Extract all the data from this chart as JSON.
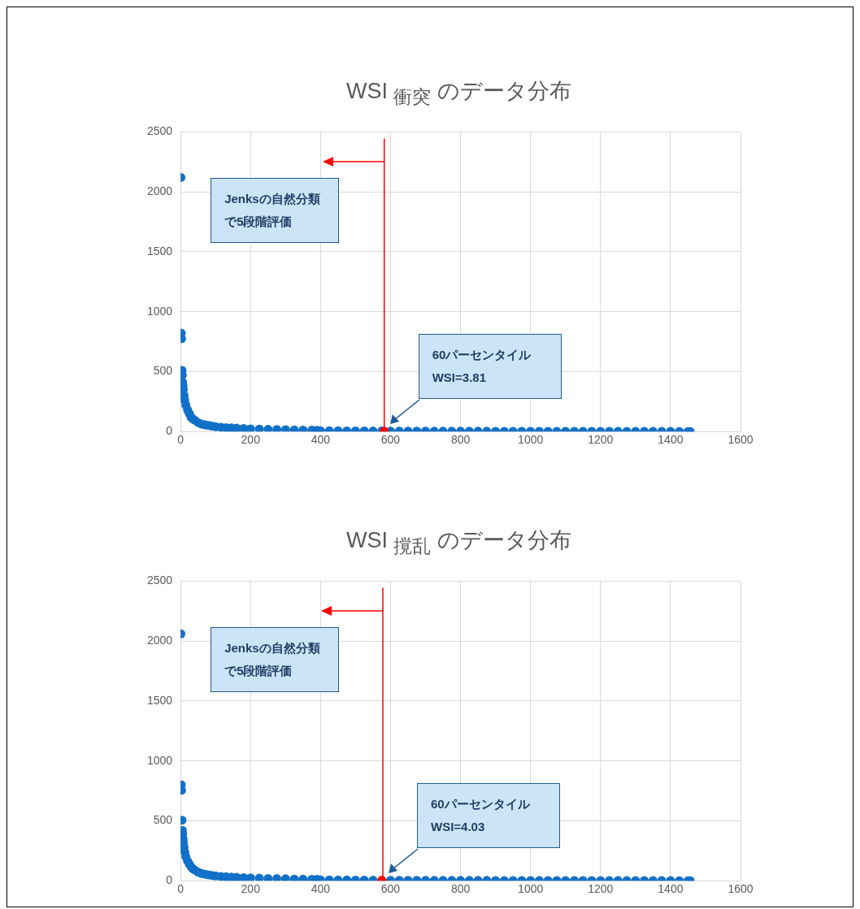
{
  "chart_data": [
    {
      "type": "scatter",
      "title": "WSI $_{衝突}$ のデータ分布",
      "xlim": [
        0,
        1600
      ],
      "xticks": [
        0,
        200,
        400,
        600,
        800,
        1000,
        1200,
        1400,
        1600
      ],
      "ylim": [
        0,
        2500
      ],
      "yticks": [
        0,
        500,
        1000,
        1500,
        2000,
        2500
      ],
      "grid": true,
      "legend": false,
      "marker": "circle",
      "series": [
        {
          "color": "#1170c8",
          "x": [
            1,
            2,
            3,
            4,
            5,
            6,
            7,
            8,
            10,
            12,
            15,
            20,
            25,
            30,
            35,
            40,
            50,
            60,
            70,
            80,
            90,
            100,
            115,
            130,
            145,
            160,
            180,
            200,
            225,
            250,
            275,
            300,
            325,
            350,
            375,
            390,
            400,
            425,
            450,
            475,
            500,
            525,
            550,
            575,
            600,
            625,
            650,
            675,
            700,
            725,
            750,
            775,
            800,
            825,
            850,
            875,
            900,
            925,
            950,
            975,
            1000,
            1025,
            1050,
            1075,
            1100,
            1125,
            1150,
            1175,
            1200,
            1225,
            1250,
            1275,
            1300,
            1325,
            1350,
            1375,
            1400,
            1425,
            1450,
            1456
          ],
          "values": [
            2120,
            820,
            775,
            510,
            470,
            410,
            380,
            350,
            300,
            260,
            220,
            180,
            150,
            120,
            105,
            95,
            75,
            62,
            55,
            50,
            45,
            40,
            36,
            32,
            30,
            28,
            25,
            22,
            20,
            18,
            17,
            15,
            13,
            12,
            11,
            10,
            6,
            5.8,
            5.6,
            5.4,
            5.1,
            4.8,
            4.4,
            4.0,
            3.6,
            3.4,
            3.2,
            3.1,
            3.0,
            2.9,
            2.8,
            2.7,
            2.6,
            2.5,
            2.4,
            2.3,
            2.2,
            2.1,
            2.0,
            1.9,
            1.8,
            1.7,
            1.6,
            1.6,
            1.5,
            1.4,
            1.3,
            1.3,
            1.2,
            1.1,
            1.0,
            1.0,
            0.9,
            0.8,
            0.8,
            0.7,
            0.6,
            0.5,
            0.4,
            0.3
          ]
        },
        {
          "color": "#ff0000",
          "x": [
            582
          ],
          "values": [
            3.81
          ]
        }
      ],
      "ref_lines": [
        {
          "axis": "x",
          "value": 582,
          "color": "#ff0000"
        }
      ],
      "annotations": [
        "Jenksの自然分類で5段階評価",
        "60パーセンタイル WSI=3.81"
      ]
    },
    {
      "type": "scatter",
      "title": "WSI $_{撹乱}$ のデータ分布",
      "xlim": [
        0,
        1600
      ],
      "xticks": [
        0,
        200,
        400,
        600,
        800,
        1000,
        1200,
        1400,
        1600
      ],
      "ylim": [
        0,
        2500
      ],
      "yticks": [
        0,
        500,
        1000,
        1500,
        2000,
        2500
      ],
      "grid": true,
      "legend": false,
      "marker": "circle",
      "series": [
        {
          "color": "#1170c8",
          "x": [
            1,
            2,
            3,
            4,
            5,
            6,
            7,
            8,
            10,
            12,
            15,
            20,
            25,
            30,
            35,
            40,
            50,
            60,
            70,
            80,
            90,
            100,
            115,
            130,
            145,
            160,
            180,
            200,
            225,
            250,
            275,
            300,
            325,
            350,
            375,
            390,
            400,
            425,
            450,
            475,
            500,
            525,
            550,
            575,
            600,
            625,
            650,
            675,
            700,
            725,
            750,
            775,
            800,
            825,
            850,
            875,
            900,
            925,
            950,
            975,
            1000,
            1025,
            1050,
            1075,
            1100,
            1125,
            1150,
            1175,
            1200,
            1225,
            1250,
            1275,
            1300,
            1325,
            1350,
            1375,
            1400,
            1425,
            1450,
            1456
          ],
          "values": [
            2060,
            800,
            755,
            505,
            420,
            390,
            350,
            320,
            280,
            240,
            200,
            165,
            140,
            115,
            100,
            90,
            72,
            60,
            54,
            48,
            44,
            40,
            36,
            33,
            30,
            28,
            25,
            23,
            21,
            19,
            18,
            16,
            14,
            13,
            12,
            11,
            7,
            6.5,
            6.0,
            5.6,
            5.3,
            5.0,
            4.6,
            null,
            3.8,
            3.6,
            3.4,
            3.2,
            3.0,
            2.9,
            2.8,
            2.7,
            2.6,
            2.5,
            2.4,
            2.3,
            2.2,
            2.1,
            2.0,
            1.9,
            1.8,
            1.7,
            1.6,
            1.6,
            1.5,
            1.4,
            1.3,
            1.3,
            1.2,
            1.1,
            1.0,
            1.0,
            0.9,
            0.8,
            0.8,
            0.7,
            0.6,
            0.5,
            0.4,
            0.3
          ]
        },
        {
          "color": "#ff0000",
          "x": [
            575
          ],
          "values": [
            4.03
          ]
        }
      ],
      "ref_lines": [
        {
          "axis": "x",
          "value": 578,
          "color": "#ff0000"
        }
      ],
      "annotations": [
        "Jenksの自然分類で5段階評価",
        "60パーセンタイル WSI=4.03"
      ]
    }
  ]
}
